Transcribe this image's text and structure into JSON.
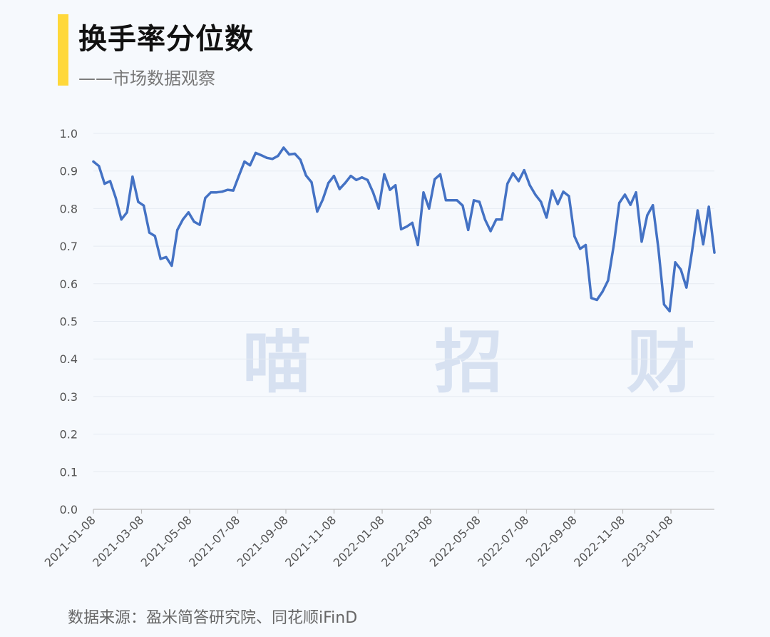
{
  "header": {
    "title": "换手率分位数",
    "subtitle": "——市场数据观察",
    "accent_color": "#ffd83a"
  },
  "watermark": "喵 招 财",
  "source": "数据来源：盈米简答研究院、同花顺iFinD",
  "chart_data": {
    "type": "line",
    "title": "换手率分位数",
    "xlabel": "",
    "ylabel": "",
    "ylim": [
      0,
      1.0
    ],
    "yticks": [
      "0.0",
      "0.1",
      "0.2",
      "0.3",
      "0.4",
      "0.5",
      "0.6",
      "0.7",
      "0.8",
      "0.9",
      "1.0"
    ],
    "xticks": [
      "2021-01-08",
      "2021-03-08",
      "2021-05-08",
      "2021-07-08",
      "2021-09-08",
      "2021-11-08",
      "2022-01-08",
      "2022-03-08",
      "2022-05-08",
      "2022-07-08",
      "2022-09-08",
      "2022-11-08",
      "2023-01-08"
    ],
    "grid": true,
    "line_color": "#4472c4",
    "series": [
      {
        "values": [
          0.925,
          0.913,
          0.866,
          0.873,
          0.828,
          0.771,
          0.79,
          0.885,
          0.818,
          0.808,
          0.736,
          0.727,
          0.666,
          0.671,
          0.648,
          0.743,
          0.771,
          0.79,
          0.765,
          0.757,
          0.828,
          0.843,
          0.843,
          0.845,
          0.85,
          0.848,
          0.887,
          0.925,
          0.915,
          0.948,
          0.942,
          0.935,
          0.932,
          0.94,
          0.962,
          0.944,
          0.946,
          0.93,
          0.888,
          0.87,
          0.792,
          0.824,
          0.868,
          0.887,
          0.852,
          0.868,
          0.887,
          0.876,
          0.883,
          0.876,
          0.843,
          0.8,
          0.891,
          0.85,
          0.862,
          0.745,
          0.752,
          0.762,
          0.703,
          0.843,
          0.8,
          0.878,
          0.891,
          0.822,
          0.822,
          0.822,
          0.808,
          0.743,
          0.822,
          0.818,
          0.771,
          0.74,
          0.771,
          0.771,
          0.866,
          0.894,
          0.873,
          0.902,
          0.862,
          0.837,
          0.818,
          0.776,
          0.848,
          0.812,
          0.845,
          0.833,
          0.726,
          0.693,
          0.703,
          0.562,
          0.557,
          0.579,
          0.609,
          0.702,
          0.815,
          0.837,
          0.81,
          0.843,
          0.712,
          0.782,
          0.809,
          0.693,
          0.545,
          0.527,
          0.657,
          0.638,
          0.59,
          0.686,
          0.795,
          0.705,
          0.805,
          0.683
        ]
      }
    ]
  }
}
